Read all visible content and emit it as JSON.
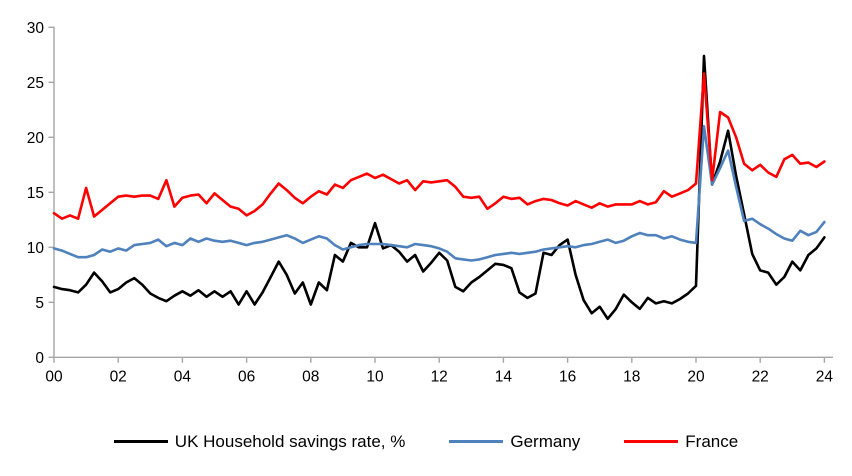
{
  "chart_data": {
    "type": "line",
    "title": "",
    "xlabel": "",
    "ylabel": "",
    "x_start_year": 2000,
    "x_step_years": 0.25,
    "x_range_years": [
      0,
      24.25
    ],
    "ylim": [
      0,
      30
    ],
    "y_ticks": [
      0,
      5,
      10,
      15,
      20,
      25,
      30
    ],
    "y_tick_labels": [
      "0",
      "5",
      "10",
      "15",
      "20",
      "25",
      "30"
    ],
    "x_tick_labels": [
      "00",
      "02",
      "04",
      "06",
      "08",
      "10",
      "12",
      "14",
      "16",
      "18",
      "20",
      "22",
      "24"
    ],
    "grid": false,
    "legend_position": "bottom",
    "axis_color": "#a6a6a6",
    "tick_label_color": "#000000",
    "series": [
      {
        "key": "uk",
        "name": "UK Household savings rate, %",
        "color": "#000000",
        "values": [
          6.4,
          6.2,
          6.1,
          5.9,
          6.6,
          7.7,
          6.9,
          5.9,
          6.2,
          6.8,
          7.2,
          6.6,
          5.8,
          5.4,
          5.1,
          5.6,
          6.0,
          5.6,
          6.1,
          5.5,
          6.0,
          5.5,
          6.0,
          4.8,
          6.0,
          4.8,
          5.9,
          7.3,
          8.7,
          7.5,
          5.8,
          6.8,
          4.8,
          6.8,
          6.1,
          9.3,
          8.7,
          10.4,
          10.0,
          10.0,
          12.2,
          9.9,
          10.2,
          9.6,
          8.7,
          9.3,
          7.8,
          8.6,
          9.5,
          8.8,
          6.4,
          6.0,
          6.8,
          7.3,
          7.9,
          8.5,
          8.4,
          8.1,
          5.9,
          5.4,
          5.8,
          9.5,
          9.3,
          10.2,
          10.7,
          7.5,
          5.2,
          4.0,
          4.6,
          3.5,
          4.4,
          5.7,
          5.0,
          4.4,
          5.4,
          4.9,
          5.1,
          4.9,
          5.3,
          5.8,
          6.5,
          27.4,
          15.7,
          17.8,
          20.6,
          16.5,
          13.0,
          9.4,
          7.9,
          7.7,
          6.6,
          7.3,
          8.7,
          7.9,
          9.3,
          9.9,
          10.9
        ]
      },
      {
        "key": "germany",
        "name": "Germany",
        "color": "#4f81bd",
        "values": [
          9.9,
          9.7,
          9.4,
          9.1,
          9.1,
          9.3,
          9.8,
          9.6,
          9.9,
          9.7,
          10.2,
          10.3,
          10.4,
          10.7,
          10.1,
          10.4,
          10.2,
          10.8,
          10.5,
          10.8,
          10.6,
          10.5,
          10.6,
          10.4,
          10.2,
          10.4,
          10.5,
          10.7,
          10.9,
          11.1,
          10.8,
          10.4,
          10.7,
          11.0,
          10.8,
          10.2,
          9.8,
          10.0,
          10.2,
          10.3,
          10.3,
          10.3,
          10.2,
          10.1,
          10.0,
          10.3,
          10.2,
          10.1,
          9.9,
          9.6,
          9.0,
          8.9,
          8.8,
          8.9,
          9.1,
          9.3,
          9.4,
          9.5,
          9.4,
          9.5,
          9.6,
          9.8,
          9.9,
          10.0,
          10.1,
          10.0,
          10.2,
          10.3,
          10.5,
          10.7,
          10.4,
          10.6,
          11.0,
          11.3,
          11.1,
          11.1,
          10.8,
          11.0,
          10.7,
          10.5,
          10.4,
          21.0,
          15.7,
          17.2,
          18.8,
          15.5,
          12.4,
          12.6,
          12.1,
          11.7,
          11.2,
          10.8,
          10.6,
          11.5,
          11.1,
          11.4,
          12.3
        ]
      },
      {
        "key": "france",
        "name": "France",
        "color": "#ff0000",
        "values": [
          13.1,
          12.6,
          12.9,
          12.6,
          15.4,
          12.8,
          13.4,
          14.0,
          14.6,
          14.7,
          14.6,
          14.7,
          14.7,
          14.4,
          16.1,
          13.7,
          14.5,
          14.7,
          14.8,
          14.0,
          14.9,
          14.3,
          13.7,
          13.5,
          12.9,
          13.3,
          13.9,
          14.9,
          15.8,
          15.2,
          14.5,
          14.0,
          14.6,
          15.1,
          14.8,
          15.7,
          15.4,
          16.1,
          16.4,
          16.7,
          16.3,
          16.6,
          16.2,
          15.8,
          16.1,
          15.2,
          16.0,
          15.9,
          16.0,
          16.1,
          15.5,
          14.6,
          14.5,
          14.6,
          13.5,
          14.0,
          14.6,
          14.4,
          14.5,
          13.9,
          14.2,
          14.4,
          14.3,
          14.0,
          13.8,
          14.2,
          13.9,
          13.6,
          14.0,
          13.7,
          13.9,
          13.9,
          13.9,
          14.2,
          13.9,
          14.1,
          15.1,
          14.6,
          14.9,
          15.2,
          15.8,
          25.8,
          16.1,
          22.3,
          21.8,
          20.0,
          17.6,
          17.0,
          17.5,
          16.8,
          16.4,
          18.0,
          18.4,
          17.6,
          17.7,
          17.3,
          17.8
        ]
      }
    ]
  },
  "legend": {
    "uk_label": "UK Household savings rate, %",
    "germany_label": "Germany",
    "france_label": "France"
  }
}
